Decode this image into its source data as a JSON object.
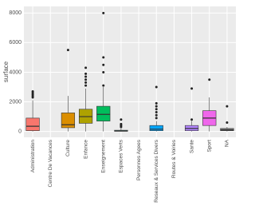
{
  "chart_data": {
    "type": "box",
    "ylabel": "surface",
    "categories": [
      "Administration",
      "Centre De Vacances",
      "Culture",
      "Enfance",
      "Enseignement",
      "Espaces Verts",
      "Personnes Agees",
      "Reseaux & Services Divers",
      "Routes & Voiries",
      "Sante",
      "Sport",
      "NA"
    ],
    "boxes": [
      {
        "min": 0,
        "q1": 50,
        "median": 350,
        "q3": 900,
        "max": 2100,
        "outliers": [
          2300,
          2400,
          2500,
          2600,
          2700
        ],
        "color": "#F8766D"
      },
      null,
      {
        "min": 0,
        "q1": 250,
        "median": 450,
        "q3": 1250,
        "max": 2400,
        "outliers": [
          5500
        ],
        "color": "#DB8E00"
      },
      {
        "min": 0,
        "q1": 550,
        "median": 1000,
        "q3": 1500,
        "max": 2900,
        "outliers": [
          3100,
          3300,
          3500,
          3700,
          3900,
          4300
        ],
        "color": "#AEA200"
      },
      {
        "min": 0,
        "q1": 700,
        "median": 1150,
        "q3": 1700,
        "max": 3000,
        "outliers": [
          3100,
          4000,
          4500,
          5000,
          8000
        ],
        "color": "#00BD5C"
      },
      {
        "min": 0,
        "q1": 10,
        "median": 30,
        "q3": 80,
        "max": 200,
        "outliers": [
          300,
          400,
          500,
          800
        ],
        "color": "#00C1A7"
      },
      null,
      {
        "min": 0,
        "q1": 50,
        "median": 150,
        "q3": 400,
        "max": 700,
        "outliers": [
          900,
          1100,
          1300,
          1500,
          1700,
          1900,
          3000
        ],
        "color": "#00A6FF"
      },
      null,
      {
        "min": 0,
        "q1": 50,
        "median": 200,
        "q3": 400,
        "max": 700,
        "outliers": [
          800,
          2900
        ],
        "color": "#B385FF"
      },
      {
        "min": 0,
        "q1": 400,
        "median": 900,
        "q3": 1400,
        "max": 2300,
        "outliers": [
          3500
        ],
        "color": "#EF67EB"
      },
      {
        "min": 0,
        "q1": 50,
        "median": 100,
        "q3": 200,
        "max": 300,
        "outliers": [
          600,
          1700
        ],
        "color": "#7F7F7F"
      }
    ],
    "ylim": [
      -400,
      8450
    ],
    "yticks": [
      0,
      2000,
      4000,
      6000,
      8000
    ],
    "grid": true
  }
}
